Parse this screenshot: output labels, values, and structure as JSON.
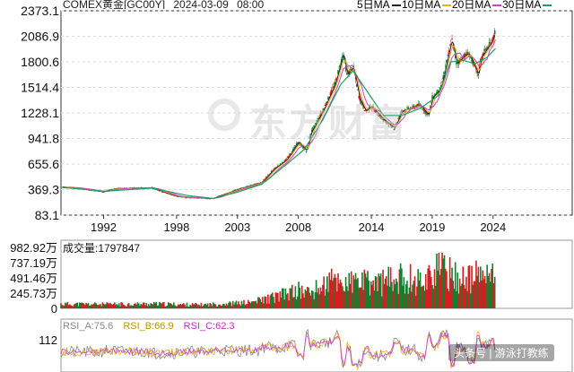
{
  "header": {
    "title": "COMEX黄金[GC00Y]",
    "date": "2024-03-09",
    "time": "08:00",
    "legend": [
      {
        "label": "5日MA",
        "color": "#222222"
      },
      {
        "label": "10日MA",
        "color": "#e8b020"
      },
      {
        "label": "20日MA",
        "color": "#d040d0"
      },
      {
        "label": "30日MA",
        "color": "#20a060"
      }
    ]
  },
  "watermark": "东方财富",
  "volume_panel": {
    "label": "成交量:1797847",
    "y_ticks": [
      "982.92万",
      "737.19万",
      "491.46万",
      "245.73万",
      "0"
    ]
  },
  "rsi_panel": {
    "legend": [
      {
        "label": "RSI_A:75.6",
        "color": "#888888"
      },
      {
        "label": "RSI_B:66.9",
        "color": "#e8b020"
      },
      {
        "label": "RSI_C:62.3",
        "color": "#d040d0"
      }
    ],
    "y_ticks": [
      "112"
    ]
  },
  "source_badge": "头条号 | 游泳打教练",
  "chart_data": [
    {
      "type": "candlestick",
      "title": "COMEX黄金[GC00Y]",
      "x_ticks": [
        "1992",
        "1998",
        "2003",
        "2008",
        "2014",
        "2019",
        "2024"
      ],
      "y_ticks": [
        2373.1,
        2086.9,
        1800.6,
        1514.4,
        1228.1,
        941.8,
        655.6,
        369.3,
        83.1
      ],
      "ylim": [
        83.1,
        2373.1
      ],
      "xlim": [
        1988.5,
        2030.5
      ],
      "series": [
        {
          "name": "price",
          "x": [
            1988.5,
            1990,
            1992,
            1993,
            1994,
            1996,
            1997,
            1998,
            1999,
            2000,
            2001,
            2002,
            2003,
            2004,
            2005,
            2006,
            2007,
            2008,
            2008.7,
            2009,
            2010,
            2011,
            2011.7,
            2012,
            2012.5,
            2013,
            2013.5,
            2014,
            2015,
            2015.9,
            2016.5,
            2017,
            2018,
            2018.7,
            2019,
            2019.7,
            2020.6,
            2021,
            2021.5,
            2022,
            2022.8,
            2023,
            2023.5,
            2024,
            2024.2
          ],
          "y": [
            400,
            385,
            345,
            380,
            385,
            390,
            340,
            295,
            280,
            275,
            270,
            320,
            370,
            410,
            450,
            600,
            700,
            900,
            800,
            1000,
            1250,
            1550,
            1900,
            1650,
            1750,
            1400,
            1250,
            1300,
            1150,
            1060,
            1250,
            1270,
            1320,
            1200,
            1400,
            1500,
            2060,
            1780,
            1850,
            1900,
            1650,
            1850,
            1950,
            2050,
            2180
          ]
        },
        {
          "name": "MA30",
          "x": [
            1988.5,
            1992,
            1996,
            1999,
            2001,
            2003,
            2005,
            2007,
            2008.5,
            2010,
            2011.5,
            2012.5,
            2013.5,
            2015,
            2016.5,
            2018,
            2019.5,
            2020.5,
            2021.5,
            2022.5,
            2023.5,
            2024.2
          ],
          "y": [
            395,
            350,
            385,
            300,
            270,
            340,
            430,
            650,
            820,
            1150,
            1550,
            1700,
            1500,
            1200,
            1200,
            1280,
            1420,
            1800,
            1820,
            1780,
            1850,
            1950
          ]
        }
      ],
      "volume": {
        "ylim": [
          0,
          9829200
        ],
        "x": [
          1988.5,
          1992,
          1996,
          2000,
          2004,
          2006,
          2008,
          2009,
          2010,
          2011,
          2012,
          2013,
          2014,
          2015,
          2016,
          2017,
          2018,
          2019,
          2019.7,
          2020,
          2021,
          2022,
          2023,
          2024
        ],
        "values": [
          1000000,
          900000,
          1000000,
          800000,
          1300000,
          2500000,
          4000000,
          3500000,
          5000000,
          6500000,
          5500000,
          6000000,
          5500000,
          6000000,
          6500000,
          7000000,
          6000000,
          8000000,
          9600000,
          8500000,
          7000000,
          6500000,
          7500000,
          7000000
        ]
      },
      "rsi": {
        "RSI_A": 75.6,
        "RSI_B": 66.9,
        "RSI_C": 62.3
      }
    }
  ]
}
